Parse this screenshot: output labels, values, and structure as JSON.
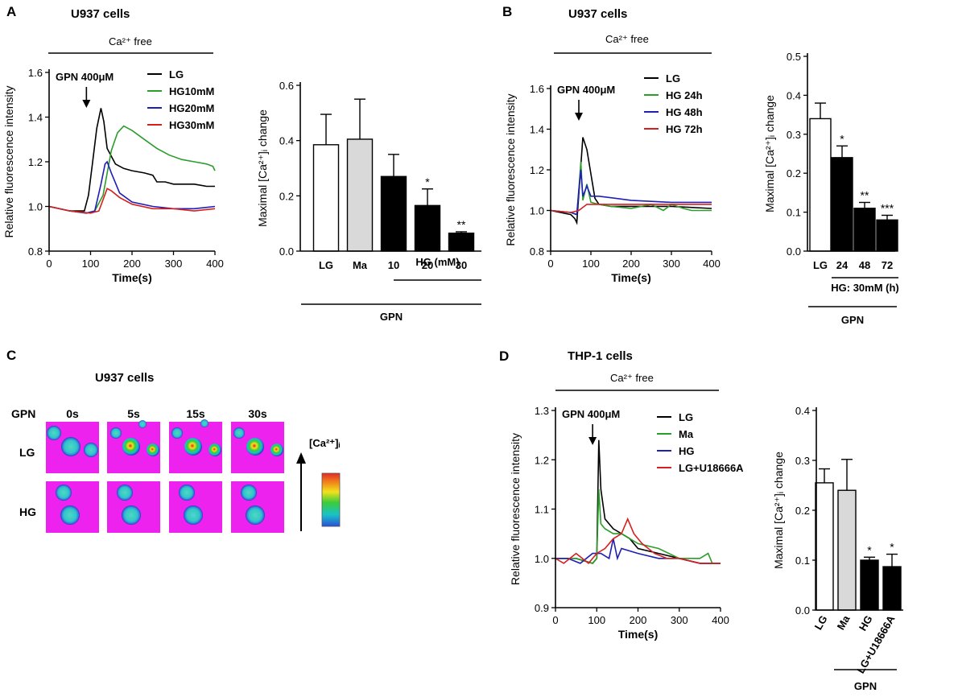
{
  "panels": {
    "A": {
      "letter": "A",
      "cell_title": "U937 cells",
      "condition": "Ca²⁺ free"
    },
    "B": {
      "letter": "B",
      "cell_title": "U937 cells",
      "condition": "Ca²⁺ free"
    },
    "C": {
      "letter": "C",
      "cell_title": "U937 cells",
      "gpn_label": "GPN",
      "times": [
        "0s",
        "5s",
        "15s",
        "30s"
      ],
      "rows": [
        "LG",
        "HG"
      ],
      "scale_label": "[Ca²⁺]ᵢ"
    },
    "D": {
      "letter": "D",
      "cell_title": "THP-1 cells",
      "condition": "Ca²⁺ free"
    }
  },
  "chart_data": [
    {
      "id": "A-line",
      "type": "line",
      "xlabel": "Time(s)",
      "ylabel": "Relative fluorescence intensity",
      "xlim": [
        0,
        400
      ],
      "ylim": [
        0.8,
        1.6
      ],
      "xticks": [
        0,
        100,
        200,
        300,
        400
      ],
      "yticks": [
        0.8,
        1.0,
        1.2,
        1.4,
        1.6
      ],
      "annotation": "GPN 400μM",
      "arrow_x": 90,
      "legend_position": "top-right",
      "series": [
        {
          "name": "LG",
          "color": "#000000",
          "x": [
            0,
            50,
            85,
            95,
            105,
            115,
            125,
            132,
            140,
            160,
            180,
            200,
            230,
            250,
            260,
            280,
            300,
            330,
            350,
            380,
            400
          ],
          "y": [
            1.0,
            0.98,
            0.98,
            1.05,
            1.2,
            1.35,
            1.44,
            1.38,
            1.26,
            1.19,
            1.17,
            1.16,
            1.15,
            1.14,
            1.11,
            1.11,
            1.1,
            1.1,
            1.1,
            1.09,
            1.09
          ]
        },
        {
          "name": "HG10mM",
          "color": "#2a9d2a",
          "x": [
            0,
            50,
            90,
            110,
            130,
            150,
            165,
            180,
            200,
            230,
            260,
            290,
            320,
            350,
            380,
            395,
            400
          ],
          "y": [
            1.0,
            0.98,
            0.97,
            0.98,
            1.05,
            1.25,
            1.33,
            1.36,
            1.34,
            1.3,
            1.26,
            1.23,
            1.21,
            1.2,
            1.19,
            1.18,
            1.16
          ]
        },
        {
          "name": "HG20mM",
          "color": "#1f1fb4",
          "x": [
            0,
            50,
            90,
            110,
            125,
            135,
            140,
            150,
            170,
            200,
            250,
            300,
            350,
            400
          ],
          "y": [
            1.0,
            0.98,
            0.97,
            0.98,
            1.1,
            1.19,
            1.2,
            1.15,
            1.06,
            1.02,
            1.0,
            0.99,
            0.99,
            1.0
          ]
        },
        {
          "name": "HG30mM",
          "color": "#d62020",
          "x": [
            0,
            50,
            100,
            120,
            130,
            140,
            150,
            170,
            200,
            250,
            300,
            350,
            400
          ],
          "y": [
            1.0,
            0.98,
            0.97,
            0.98,
            1.03,
            1.08,
            1.07,
            1.04,
            1.01,
            0.99,
            0.99,
            0.98,
            0.99
          ]
        }
      ]
    },
    {
      "id": "A-bar",
      "type": "bar",
      "ylabel": "Maximal [Ca²⁺]ᵢ change",
      "ylim": [
        0,
        0.6
      ],
      "yticks": [
        0.0,
        0.2,
        0.4,
        0.6
      ],
      "categories": [
        "LG",
        "Ma",
        "10",
        "20",
        "30"
      ],
      "values": [
        0.385,
        0.405,
        0.27,
        0.165,
        0.065
      ],
      "errors": [
        0.11,
        0.145,
        0.08,
        0.06,
        0.005
      ],
      "fills": [
        "#ffffff",
        "#d9d9d9",
        "#000000",
        "#000000",
        "#000000"
      ],
      "significance": [
        "",
        "",
        "",
        "*",
        "**"
      ],
      "group_label": "HG (mM)",
      "bottom_label": "GPN"
    },
    {
      "id": "B-line",
      "type": "line",
      "xlabel": "Time(s)",
      "ylabel": "Relative fluorescence intensity",
      "xlim": [
        0,
        400
      ],
      "ylim": [
        0.8,
        1.6
      ],
      "xticks": [
        0,
        100,
        200,
        300,
        400
      ],
      "yticks": [
        0.8,
        1.0,
        1.2,
        1.4,
        1.6
      ],
      "annotation": "GPN 400μM",
      "arrow_x": 70,
      "legend_position": "top-right",
      "series": [
        {
          "name": "LG",
          "color": "#000000",
          "x": [
            0,
            50,
            60,
            65,
            70,
            80,
            90,
            100,
            110,
            120,
            150,
            200,
            300,
            400
          ],
          "y": [
            1.0,
            0.98,
            0.96,
            0.94,
            1.08,
            1.36,
            1.3,
            1.18,
            1.06,
            1.03,
            1.02,
            1.02,
            1.02,
            1.01
          ]
        },
        {
          "name": "HG 24h",
          "color": "#2a9d2a",
          "x": [
            0,
            50,
            65,
            70,
            75,
            80,
            90,
            100,
            120,
            150,
            200,
            250,
            280,
            300,
            330,
            350,
            400
          ],
          "y": [
            1.0,
            0.99,
            0.98,
            1.1,
            1.24,
            1.05,
            1.13,
            1.04,
            1.03,
            1.02,
            1.01,
            1.03,
            1.0,
            1.03,
            1.01,
            1.0,
            1.0
          ]
        },
        {
          "name": "HG 48h",
          "color": "#1f1fb4",
          "x": [
            0,
            50,
            65,
            70,
            75,
            80,
            90,
            100,
            120,
            200,
            300,
            400
          ],
          "y": [
            1.0,
            0.99,
            0.98,
            1.1,
            1.2,
            1.07,
            1.12,
            1.07,
            1.07,
            1.05,
            1.04,
            1.04
          ]
        },
        {
          "name": "HG 72h",
          "color": "#d62020",
          "x": [
            0,
            50,
            70,
            90,
            120,
            200,
            300,
            400
          ],
          "y": [
            1.0,
            0.99,
            1.0,
            1.03,
            1.03,
            1.03,
            1.03,
            1.03
          ]
        }
      ]
    },
    {
      "id": "B-bar",
      "type": "bar",
      "ylabel": "Maximal [Ca²⁺]ᵢ change",
      "ylim": [
        0,
        0.5
      ],
      "yticks": [
        0.0,
        0.1,
        0.2,
        0.3,
        0.4,
        0.5
      ],
      "categories": [
        "LG",
        "24",
        "48",
        "72"
      ],
      "values": [
        0.34,
        0.24,
        0.11,
        0.08
      ],
      "errors": [
        0.04,
        0.03,
        0.015,
        0.012
      ],
      "fills": [
        "#ffffff",
        "#000000",
        "#000000",
        "#000000"
      ],
      "significance": [
        "",
        "*",
        "**",
        "***"
      ],
      "group_label": "HG: 30mM (h)",
      "bottom_label": "GPN"
    },
    {
      "id": "D-line",
      "type": "line",
      "xlabel": "Time(s)",
      "ylabel": "Relative fluorescence intensity",
      "xlim": [
        0,
        400
      ],
      "ylim": [
        0.9,
        1.3
      ],
      "xticks": [
        0,
        100,
        200,
        300,
        400
      ],
      "yticks": [
        0.9,
        1.0,
        1.1,
        1.2,
        1.3
      ],
      "annotation": "GPN 400μM",
      "arrow_x": 90,
      "legend_position": "top-right",
      "series": [
        {
          "name": "LG",
          "color": "#000000",
          "x": [
            0,
            50,
            90,
            100,
            105,
            110,
            120,
            140,
            160,
            180,
            200,
            250,
            300,
            350,
            400
          ],
          "y": [
            1.0,
            1.0,
            0.99,
            1.0,
            1.24,
            1.14,
            1.08,
            1.06,
            1.05,
            1.04,
            1.02,
            1.01,
            1.0,
            0.99,
            0.99
          ]
        },
        {
          "name": "Ma",
          "color": "#2a9d2a",
          "x": [
            0,
            50,
            90,
            100,
            105,
            110,
            120,
            140,
            160,
            200,
            250,
            300,
            350,
            370,
            380,
            400
          ],
          "y": [
            1.0,
            1.0,
            0.99,
            1.0,
            1.14,
            1.07,
            1.06,
            1.05,
            1.05,
            1.03,
            1.02,
            1.0,
            1.0,
            1.01,
            0.99,
            0.99
          ]
        },
        {
          "name": "HG",
          "color": "#1f1fb4",
          "x": [
            0,
            30,
            60,
            90,
            110,
            130,
            140,
            150,
            160,
            200,
            250,
            300,
            350,
            400
          ],
          "y": [
            1.0,
            1.0,
            0.99,
            1.01,
            1.01,
            1.0,
            1.04,
            1.0,
            1.02,
            1.01,
            1.0,
            1.0,
            0.99,
            0.99
          ]
        },
        {
          "name": "LG+U18666A",
          "color": "#d62020",
          "x": [
            0,
            20,
            50,
            80,
            100,
            120,
            140,
            160,
            175,
            190,
            210,
            240,
            270,
            300,
            350,
            400
          ],
          "y": [
            1.0,
            0.99,
            1.01,
            0.99,
            1.01,
            1.02,
            1.04,
            1.05,
            1.08,
            1.05,
            1.03,
            1.01,
            1.0,
            1.0,
            0.99,
            0.99
          ]
        }
      ]
    },
    {
      "id": "D-bar",
      "type": "bar",
      "ylabel": "Maximal [Ca²⁺]ᵢ change",
      "ylim": [
        0,
        0.4
      ],
      "yticks": [
        0.0,
        0.1,
        0.2,
        0.3,
        0.4
      ],
      "categories": [
        "LG",
        "Ma",
        "HG",
        "LG+U18666A"
      ],
      "values": [
        0.255,
        0.24,
        0.1,
        0.087
      ],
      "errors": [
        0.028,
        0.062,
        0.006,
        0.025
      ],
      "fills": [
        "#ffffff",
        "#d9d9d9",
        "#000000",
        "#000000"
      ],
      "significance": [
        "",
        "",
        "*",
        "*"
      ],
      "bottom_label": "GPN"
    }
  ]
}
